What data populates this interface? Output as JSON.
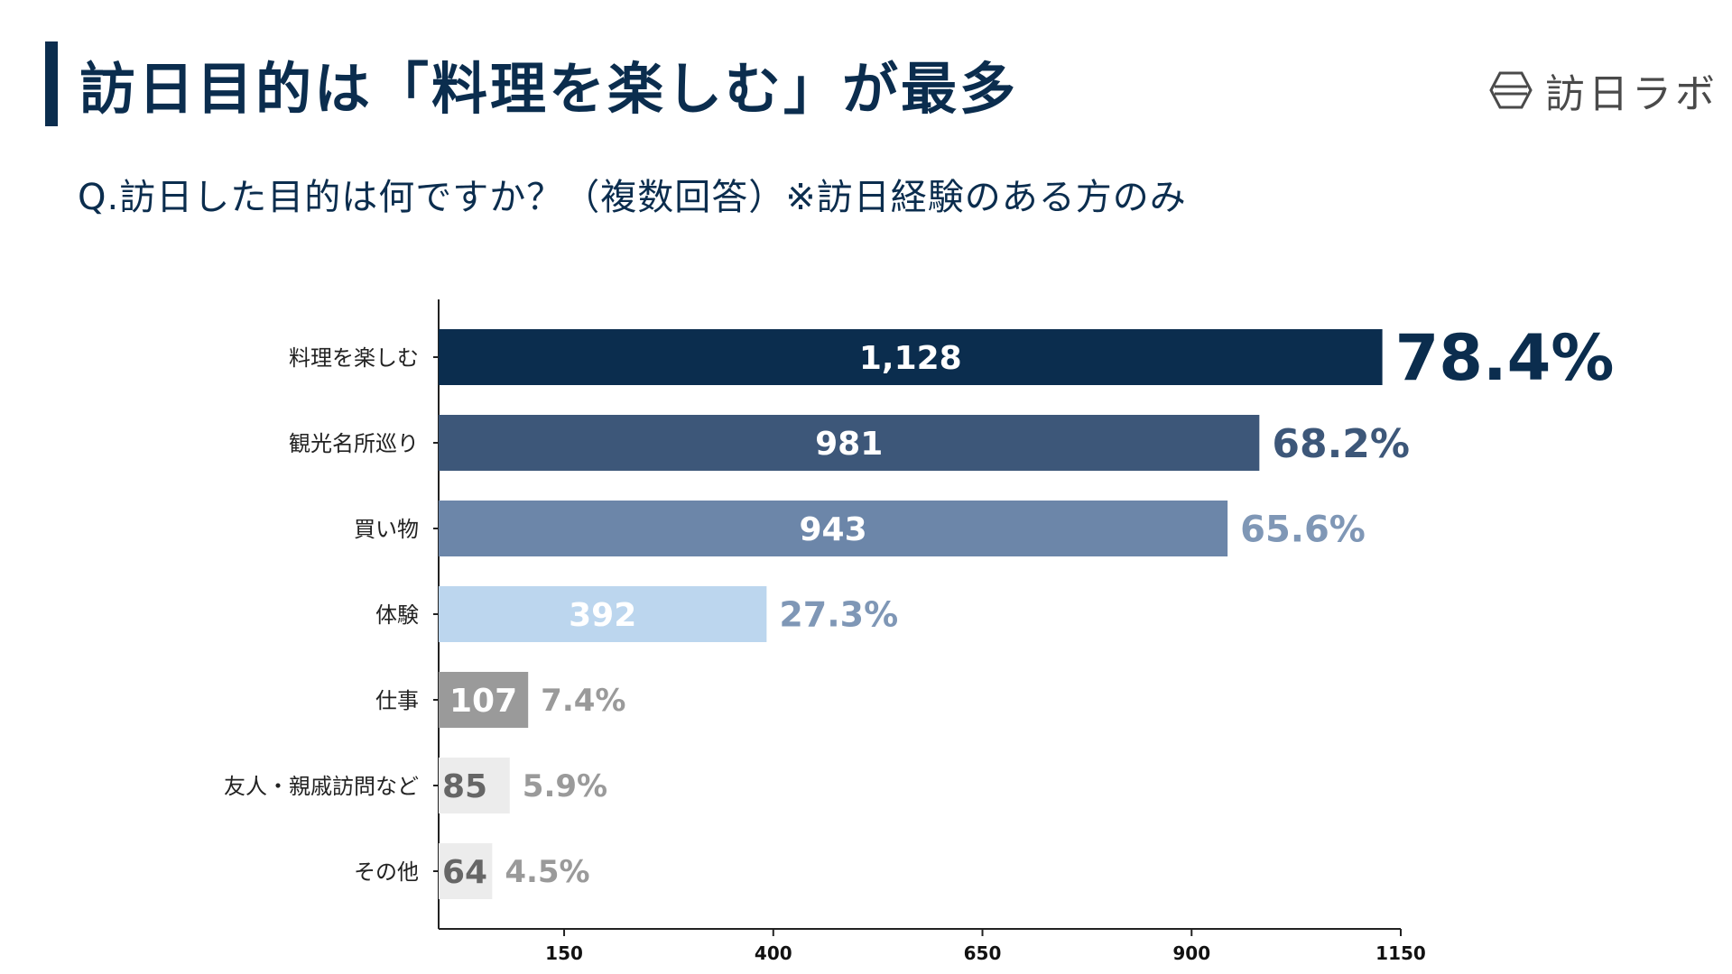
{
  "header": {
    "title": "訪日目的は「料理を楽しむ」が最多",
    "subtitle": "Q.訪日した目的は何ですか？（複数回答）※訪日経験のある方のみ"
  },
  "logo": {
    "text": "訪日ラボ",
    "icon": "hexagon-logo-icon"
  },
  "colors": {
    "accent": "#0b2d4e",
    "axis": "#222222"
  },
  "chart_data": {
    "type": "bar",
    "orientation": "horizontal",
    "title": "訪日目的は「料理を楽しむ」が最多",
    "xlabel": "",
    "ylabel": "",
    "x_ticks": [
      150,
      400,
      650,
      900,
      1150
    ],
    "xlim": [
      0,
      1150
    ],
    "grid": false,
    "categories": [
      "料理を楽しむ",
      "観光名所巡り",
      "買い物",
      "体験",
      "仕事",
      "友人・親戚訪問など",
      "その他"
    ],
    "values": [
      1128,
      981,
      943,
      392,
      107,
      85,
      64
    ],
    "value_labels": [
      "1,128",
      "981",
      "943",
      "392",
      "107",
      "85",
      "64"
    ],
    "percent_labels": [
      "78.4%",
      "68.2%",
      "65.6%",
      "27.3%",
      "7.4%",
      "5.9%",
      "4.5%"
    ],
    "bar_colors": [
      "#0b2d4e",
      "#3d5779",
      "#6c86a9",
      "#bcd6ee",
      "#9a9a9a",
      "#ececec",
      "#ececec"
    ],
    "value_colors": [
      "#ffffff",
      "#ffffff",
      "#ffffff",
      "#ffffff",
      "#ffffff",
      "#666666",
      "#666666"
    ],
    "percent_colors": [
      "#0b2d4e",
      "#3d5779",
      "#7f97b6",
      "#7f97b6",
      "#9a9a9a",
      "#9a9a9a",
      "#9a9a9a"
    ]
  }
}
